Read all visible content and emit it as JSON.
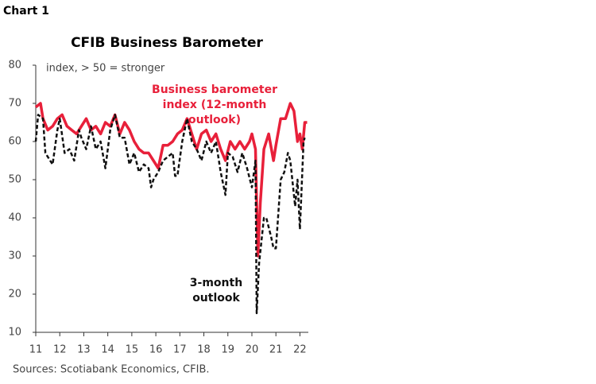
{
  "chart_data": {
    "type": "line",
    "chart_label": "Chart 1",
    "title": "CFIB Business Barometer",
    "subtitle": "index, > 50 = stronger",
    "source": "Sources: Scotiabank Economics, CFIB.",
    "xlim": [
      11,
      22.35
    ],
    "xticks": [
      11,
      12,
      13,
      14,
      15,
      16,
      17,
      18,
      19,
      20,
      21,
      22
    ],
    "ylim": [
      10,
      80
    ],
    "yticks": [
      10,
      20,
      30,
      40,
      50,
      60,
      70,
      80
    ],
    "grid": false,
    "series": [
      {
        "name": "Business barometer index (12-month outlook)",
        "color": "#e8203a",
        "dash": false,
        "x": [
          11.0,
          11.2,
          11.3,
          11.5,
          11.7,
          11.9,
          12.1,
          12.3,
          12.5,
          12.7,
          12.9,
          13.1,
          13.3,
          13.5,
          13.7,
          13.9,
          14.1,
          14.3,
          14.5,
          14.7,
          14.9,
          15.1,
          15.3,
          15.5,
          15.7,
          15.9,
          16.1,
          16.3,
          16.5,
          16.7,
          16.9,
          17.1,
          17.3,
          17.5,
          17.7,
          17.9,
          18.1,
          18.3,
          18.5,
          18.7,
          18.9,
          19.1,
          19.3,
          19.5,
          19.7,
          19.9,
          20.0,
          20.15,
          20.25,
          20.35,
          20.5,
          20.7,
          20.9,
          21.0,
          21.2,
          21.4,
          21.6,
          21.75,
          21.9,
          22.0,
          22.1,
          22.2,
          22.3
        ],
        "values": [
          69,
          70,
          66,
          63,
          64,
          66,
          67,
          64,
          63,
          62,
          64,
          66,
          63,
          64,
          62,
          65,
          64,
          67,
          62,
          65,
          63,
          60,
          58,
          57,
          57,
          55,
          53,
          59,
          59,
          60,
          62,
          63,
          66,
          62,
          58,
          62,
          63,
          60,
          62,
          58,
          55,
          60,
          58,
          60,
          58,
          60,
          62,
          58,
          30,
          44,
          58,
          62,
          55,
          59,
          66,
          66,
          70,
          68,
          60,
          62,
          58,
          65,
          65
        ]
      },
      {
        "name": "3-month outlook",
        "color": "#111111",
        "dash": true,
        "x": [
          11.0,
          11.1,
          11.3,
          11.4,
          11.6,
          11.7,
          11.9,
          12.0,
          12.2,
          12.4,
          12.6,
          12.8,
          12.9,
          13.1,
          13.3,
          13.5,
          13.7,
          13.9,
          14.1,
          14.3,
          14.5,
          14.7,
          14.9,
          15.1,
          15.3,
          15.5,
          15.7,
          15.8,
          15.9,
          16.1,
          16.3,
          16.5,
          16.7,
          16.8,
          16.9,
          17.1,
          17.3,
          17.5,
          17.7,
          17.9,
          18.1,
          18.3,
          18.5,
          18.7,
          18.9,
          19.0,
          19.2,
          19.4,
          19.6,
          19.8,
          20.0,
          20.15,
          20.2,
          20.3,
          20.5,
          20.6,
          20.8,
          20.9,
          21.0,
          21.2,
          21.35,
          21.5,
          21.6,
          21.8,
          21.9,
          22.0,
          22.15,
          22.2
        ],
        "values": [
          60,
          67,
          66,
          57,
          55,
          54,
          63,
          66,
          57,
          58,
          55,
          63,
          61,
          58,
          64,
          58,
          60,
          53,
          63,
          67,
          61,
          61,
          54,
          57,
          52,
          54,
          53,
          48,
          50,
          52,
          55,
          56,
          57,
          51,
          51,
          60,
          66,
          60,
          58,
          55,
          60,
          57,
          60,
          52,
          46,
          57,
          56,
          52,
          57,
          53,
          48,
          55,
          15,
          28,
          40,
          40,
          35,
          32,
          32,
          50,
          52,
          57,
          55,
          43,
          50,
          37,
          60,
          61
        ]
      }
    ]
  }
}
